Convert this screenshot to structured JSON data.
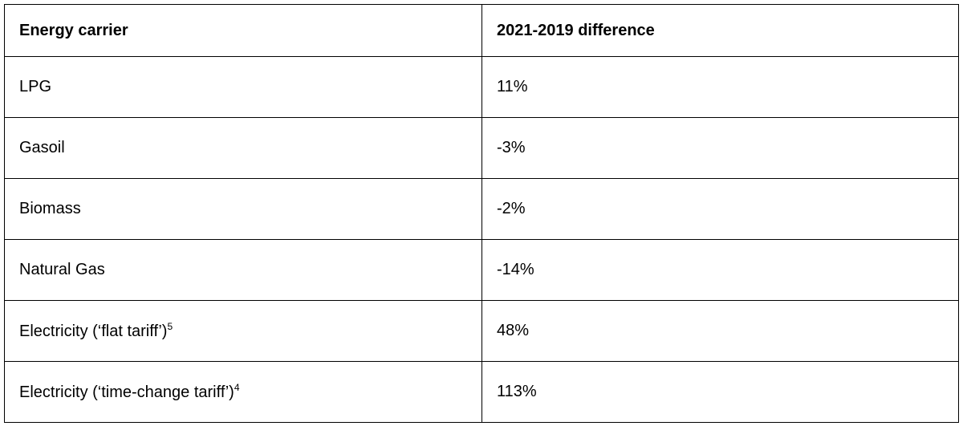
{
  "table": {
    "header": [
      "Energy carrier",
      "2021-2019 difference"
    ],
    "rows": [
      {
        "carrier": "LPG",
        "difference": "11%"
      },
      {
        "carrier": "Gasoil",
        "difference": "-3%"
      },
      {
        "carrier": "Biomass",
        "difference": "-2%"
      },
      {
        "carrier": "Natural Gas",
        "difference": "-14%"
      },
      {
        "carrier": "Electricity (‘flat tariff’)",
        "note": "5",
        "difference": "48%"
      },
      {
        "carrier": "Electricity (‘time-change tariff’)",
        "note": "4",
        "difference": "113%"
      }
    ]
  }
}
